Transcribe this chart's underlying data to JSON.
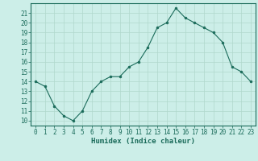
{
  "x": [
    0,
    1,
    2,
    3,
    4,
    5,
    6,
    7,
    8,
    9,
    10,
    11,
    12,
    13,
    14,
    15,
    16,
    17,
    18,
    19,
    20,
    21,
    22,
    23
  ],
  "y": [
    14,
    13.5,
    11.5,
    10.5,
    10,
    11,
    13,
    14,
    14.5,
    14.5,
    15.5,
    16,
    17.5,
    19.5,
    20,
    21.5,
    20.5,
    20,
    19.5,
    19,
    18,
    15.5,
    15,
    14
  ],
  "line_color": "#1a6b5a",
  "marker_color": "#1a6b5a",
  "bg_color": "#cceee8",
  "grid_color": "#b0d8cc",
  "border_color": "#1a6b5a",
  "xlabel": "Humidex (Indice chaleur)",
  "xlabel_fontsize": 6.5,
  "tick_fontsize": 5.5,
  "ylim": [
    9.5,
    22
  ],
  "xlim": [
    -0.5,
    23.5
  ],
  "yticks": [
    10,
    11,
    12,
    13,
    14,
    15,
    16,
    17,
    18,
    19,
    20,
    21
  ],
  "xticks": [
    0,
    1,
    2,
    3,
    4,
    5,
    6,
    7,
    8,
    9,
    10,
    11,
    12,
    13,
    14,
    15,
    16,
    17,
    18,
    19,
    20,
    21,
    22,
    23
  ]
}
